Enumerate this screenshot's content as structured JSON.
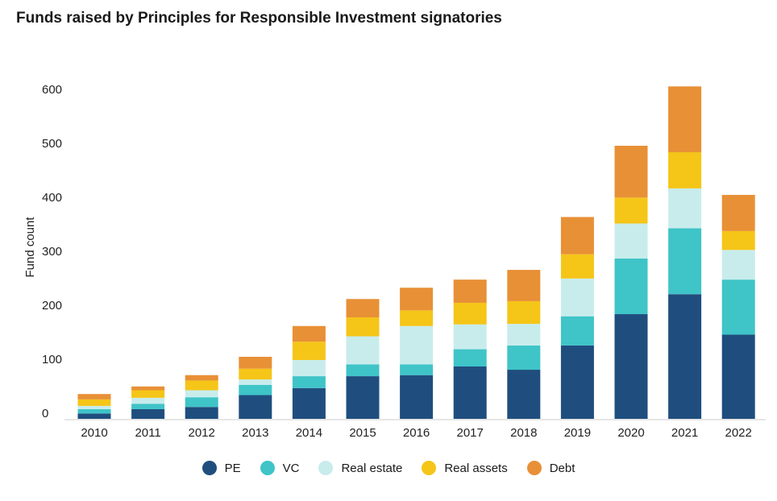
{
  "header": {
    "title": "Funds raised by Principles for Responsible Investment signatories"
  },
  "chart_data": {
    "type": "bar",
    "stacked": true,
    "title": "Funds raised by Principles for Responsible Investment signatories",
    "xlabel": "",
    "ylabel": "Fund count",
    "ylim": [
      0,
      600
    ],
    "yticks": [
      0,
      100,
      200,
      300,
      400,
      500,
      600
    ],
    "grid": false,
    "legend_position": "bottom",
    "categories": [
      "2010",
      "2011",
      "2012",
      "2013",
      "2014",
      "2015",
      "2016",
      "2017",
      "2018",
      "2019",
      "2020",
      "2021",
      "2022"
    ],
    "series": [
      {
        "name": "PE",
        "color": "#1f4e7e",
        "values": [
          10,
          18,
          22,
          44,
          57,
          79,
          81,
          97,
          91,
          136,
          194,
          231,
          156
        ]
      },
      {
        "name": "VC",
        "color": "#3fc4c8",
        "values": [
          8,
          10,
          18,
          19,
          22,
          22,
          20,
          32,
          45,
          54,
          103,
          122,
          102
        ]
      },
      {
        "name": "Real estate",
        "color": "#c8ecec",
        "values": [
          6,
          11,
          13,
          10,
          30,
          52,
          71,
          46,
          40,
          70,
          65,
          74,
          55
        ]
      },
      {
        "name": "Real assets",
        "color": "#f5c518",
        "values": [
          12,
          14,
          18,
          20,
          34,
          35,
          29,
          40,
          42,
          45,
          48,
          67,
          35
        ]
      },
      {
        "name": "Debt",
        "color": "#e89036",
        "values": [
          10,
          7,
          10,
          22,
          29,
          34,
          42,
          43,
          58,
          69,
          96,
          122,
          67
        ]
      }
    ]
  }
}
